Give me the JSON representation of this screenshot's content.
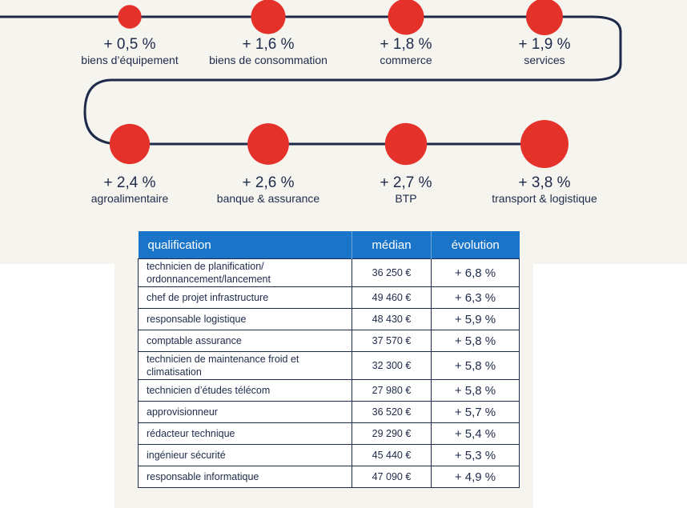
{
  "chart_data": [
    {
      "type": "scatter",
      "title": "",
      "points": [
        {
          "value": "+ 0,5 %",
          "label": "biens d’équipement",
          "v": 0.5
        },
        {
          "value": "+ 1,6 %",
          "label": "biens de consommation",
          "v": 1.6
        },
        {
          "value": "+ 1,8 %",
          "label": "commerce",
          "v": 1.8
        },
        {
          "value": "+ 1,9 %",
          "label": "services",
          "v": 1.9
        },
        {
          "value": "+ 2,4 %",
          "label": "agroalimentaire",
          "v": 2.4
        },
        {
          "value": "+ 2,6 %",
          "label": "banque & assurance",
          "v": 2.6
        },
        {
          "value": "+ 2,7 %",
          "label": "BTP",
          "v": 2.7
        },
        {
          "value": "+ 3,8 %",
          "label": "transport & logistique",
          "v": 3.8
        }
      ],
      "colors": {
        "point": "#e4322b",
        "path": "#1e2a4a"
      }
    },
    {
      "type": "table",
      "columns": [
        "qualification",
        "médian",
        "évolution"
      ],
      "rows": [
        {
          "qualification": "technicien de planification/ ordonnancement/lancement",
          "median": "36 250 €",
          "evolution": "+ 6,8 %"
        },
        {
          "qualification": "chef de projet infrastructure",
          "median": "49 460 €",
          "evolution": "+ 6,3 %"
        },
        {
          "qualification": "responsable logistique",
          "median": "48 430 €",
          "evolution": "+ 5,9 %"
        },
        {
          "qualification": "comptable assurance",
          "median": "37 570 €",
          "evolution": "+ 5,8 %"
        },
        {
          "qualification": "technicien de maintenance froid et climatisation",
          "median": "32 300 €",
          "evolution": "+ 5,8 %"
        },
        {
          "qualification": "technicien d’études télécom",
          "median": "27 980 €",
          "evolution": "+ 5,8 %"
        },
        {
          "qualification": "approvisionneur",
          "median": "36 520 €",
          "evolution": "+ 5,7 %"
        },
        {
          "qualification": "rédacteur technique",
          "median": "29 290 €",
          "evolution": "+ 5,4 %"
        },
        {
          "qualification": "ingénieur sécurité",
          "median": "45 440 €",
          "evolution": "+ 5,3 %"
        },
        {
          "qualification": "responsable informatique",
          "median": "47 090 €",
          "evolution": "+ 4,9 %"
        }
      ],
      "colors": {
        "header": "#1a74c8"
      }
    }
  ]
}
